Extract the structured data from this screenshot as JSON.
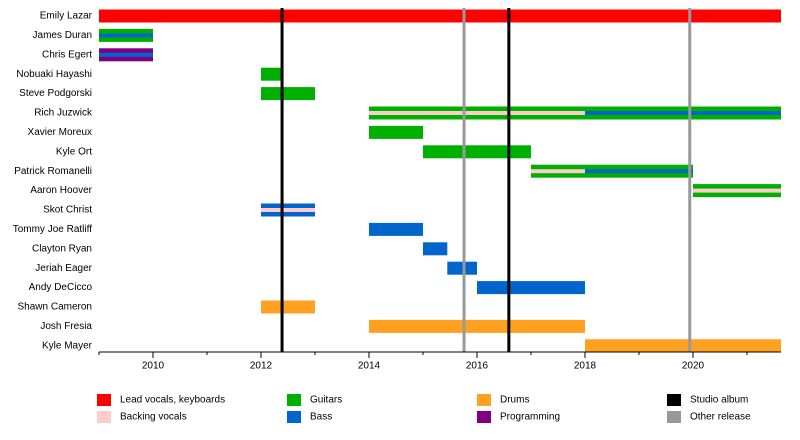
{
  "chart_data": {
    "type": "timeline",
    "members": [
      {
        "name": "Emily Lazar",
        "periods": [
          {
            "start": 2009,
            "end": 2021.63,
            "roles": [
              "Lead vocals, keyboards"
            ]
          }
        ]
      },
      {
        "name": "James Duran",
        "periods": [
          {
            "start": 2009,
            "end": 2010,
            "roles": [
              "Guitars",
              "Bass"
            ]
          }
        ]
      },
      {
        "name": "Chris Egert",
        "periods": [
          {
            "start": 2009,
            "end": 2010,
            "roles": [
              "Programming",
              "Bass"
            ]
          }
        ]
      },
      {
        "name": "Nobuaki Hayashi",
        "periods": [
          {
            "start": 2012,
            "end": 2012.4,
            "roles": [
              "Guitars"
            ]
          }
        ]
      },
      {
        "name": "Steve Podgorski",
        "periods": [
          {
            "start": 2012,
            "end": 2013,
            "roles": [
              "Guitars"
            ]
          }
        ]
      },
      {
        "name": "Rich Juzwick",
        "periods": [
          {
            "start": 2014,
            "end": 2018,
            "roles": [
              "Guitars",
              "Backing vocals"
            ]
          },
          {
            "start": 2018,
            "end": 2021.63,
            "roles": [
              "Guitars",
              "Bass"
            ]
          }
        ]
      },
      {
        "name": "Xavier Moreux",
        "periods": [
          {
            "start": 2014,
            "end": 2015,
            "roles": [
              "Guitars"
            ]
          }
        ]
      },
      {
        "name": "Kyle Ort",
        "periods": [
          {
            "start": 2015,
            "end": 2017,
            "roles": [
              "Guitars"
            ]
          }
        ]
      },
      {
        "name": "Patrick Romanelli",
        "periods": [
          {
            "start": 2017,
            "end": 2018,
            "roles": [
              "Guitars",
              "Backing vocals"
            ]
          },
          {
            "start": 2018,
            "end": 2020,
            "roles": [
              "Guitars",
              "Bass"
            ]
          }
        ]
      },
      {
        "name": "Aaron Hoover",
        "periods": [
          {
            "start": 2020,
            "end": 2021.63,
            "roles": [
              "Guitars",
              "Backing vocals"
            ]
          }
        ]
      },
      {
        "name": "Skot Christ",
        "periods": [
          {
            "start": 2012,
            "end": 2013,
            "roles": [
              "Bass",
              "Backing vocals"
            ]
          }
        ]
      },
      {
        "name": "Tommy Joe Ratliff",
        "periods": [
          {
            "start": 2014,
            "end": 2015,
            "roles": [
              "Bass"
            ]
          }
        ]
      },
      {
        "name": "Clayton Ryan",
        "periods": [
          {
            "start": 2015,
            "end": 2015.45,
            "roles": [
              "Bass"
            ]
          }
        ]
      },
      {
        "name": "Jeriah Eager",
        "periods": [
          {
            "start": 2015.45,
            "end": 2016,
            "roles": [
              "Bass"
            ]
          }
        ]
      },
      {
        "name": "Andy DeCicco",
        "periods": [
          {
            "start": 2016,
            "end": 2018,
            "roles": [
              "Bass"
            ]
          }
        ]
      },
      {
        "name": "Shawn Cameron",
        "periods": [
          {
            "start": 2012,
            "end": 2013,
            "roles": [
              "Drums"
            ]
          }
        ]
      },
      {
        "name": "Josh Fresia",
        "periods": [
          {
            "start": 2014,
            "end": 2018,
            "roles": [
              "Drums"
            ]
          }
        ]
      },
      {
        "name": "Kyle Mayer",
        "periods": [
          {
            "start": 2018,
            "end": 2021.63,
            "roles": [
              "Drums"
            ]
          }
        ]
      }
    ],
    "events": [
      {
        "value": 2012.39,
        "kind": "Studio album"
      },
      {
        "value": 2015.76,
        "kind": "Other release"
      },
      {
        "value": 2016.59,
        "kind": "Studio album"
      },
      {
        "value": 2019.94,
        "kind": "Other release"
      }
    ],
    "legend": [
      {
        "name": "Lead vocals, keyboards",
        "color": "#ff0000"
      },
      {
        "name": "Backing vocals",
        "color": "#ffcccc"
      },
      {
        "name": "Guitars",
        "color": "#00b000"
      },
      {
        "name": "Bass",
        "color": "#0066cc"
      },
      {
        "name": "Drums",
        "color": "#ffa020"
      },
      {
        "name": "Programming",
        "color": "#800080"
      },
      {
        "name": "Studio album",
        "color": "#000000"
      },
      {
        "name": "Other release",
        "color": "#999999"
      }
    ],
    "xlim": [
      2009,
      2021.63
    ],
    "xticks": [
      2010,
      2012,
      2014,
      2016,
      2018,
      2020
    ],
    "xminorticks": [
      2009,
      2010,
      2011,
      2012,
      2013,
      2014,
      2015,
      2016,
      2017,
      2018,
      2019,
      2020,
      2021
    ]
  }
}
